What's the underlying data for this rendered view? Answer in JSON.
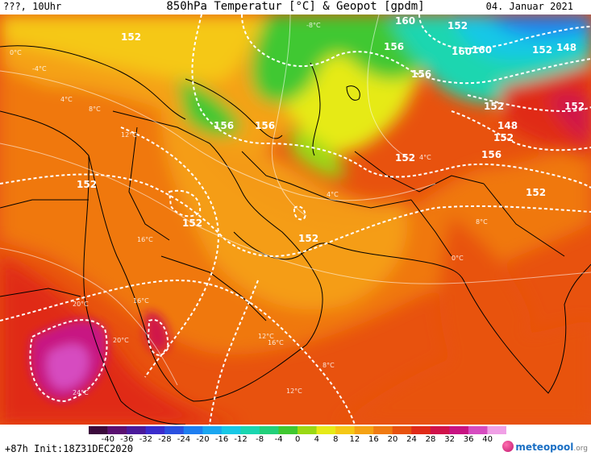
{
  "header": {
    "left": "???, 10Uhr",
    "title": "850hPa Temperatur [°C] & Geopot [gpdm]",
    "date": "04. Januar 2021"
  },
  "footer": {
    "init": "+87h Init:18Z31DEC2020",
    "logo_main": "meteopool",
    "logo_suffix": ".org"
  },
  "colorbar": {
    "labels": [
      "-40",
      "-36",
      "-32",
      "-28",
      "-24",
      "-20",
      "-16",
      "-12",
      "-8",
      "-4",
      "0",
      "4",
      "8",
      "12",
      "16",
      "20",
      "24",
      "28",
      "32",
      "36",
      "40"
    ],
    "colors": [
      "#3b0a3b",
      "#5a1070",
      "#4a1a9a",
      "#3a2ccc",
      "#2a50e0",
      "#1e7ef0",
      "#1aa6f0",
      "#18c8e6",
      "#1ad6b0",
      "#22d07a",
      "#40c830",
      "#9ad814",
      "#e6ea18",
      "#f5c816",
      "#f5a214",
      "#f07a12",
      "#e8520e",
      "#e02a18",
      "#d0124a",
      "#c81482",
      "#d64cc0",
      "#f0a0e6"
    ]
  },
  "geopotential_labels": [
    {
      "text": "152"
    },
    {
      "text": "160"
    },
    {
      "text": "156"
    },
    {
      "text": "160"
    },
    {
      "text": "152"
    },
    {
      "text": "148"
    },
    {
      "text": "156"
    },
    {
      "text": "156"
    },
    {
      "text": "156"
    },
    {
      "text": "148"
    },
    {
      "text": "152"
    },
    {
      "text": "152"
    },
    {
      "text": "152"
    },
    {
      "text": "152"
    },
    {
      "text": "152"
    },
    {
      "text": "152"
    },
    {
      "text": "156"
    },
    {
      "text": "152"
    },
    {
      "text": "152"
    },
    {
      "text": "160"
    },
    {
      "text": "152"
    }
  ],
  "temperature_labels": [
    {
      "text": "0°C"
    },
    {
      "text": "-4°C"
    },
    {
      "text": "4°C"
    },
    {
      "text": "8°C"
    },
    {
      "text": "12°C"
    },
    {
      "text": "16°C"
    },
    {
      "text": "20°C"
    },
    {
      "text": "16°C"
    },
    {
      "text": "12°C"
    },
    {
      "text": "8°C"
    },
    {
      "text": "4°C"
    },
    {
      "text": "-8°C"
    },
    {
      "text": "20°C"
    },
    {
      "text": "24°C"
    },
    {
      "text": "16°C"
    },
    {
      "text": "12°C"
    },
    {
      "text": "8°C"
    },
    {
      "text": "4°C"
    },
    {
      "text": "0°C"
    }
  ]
}
